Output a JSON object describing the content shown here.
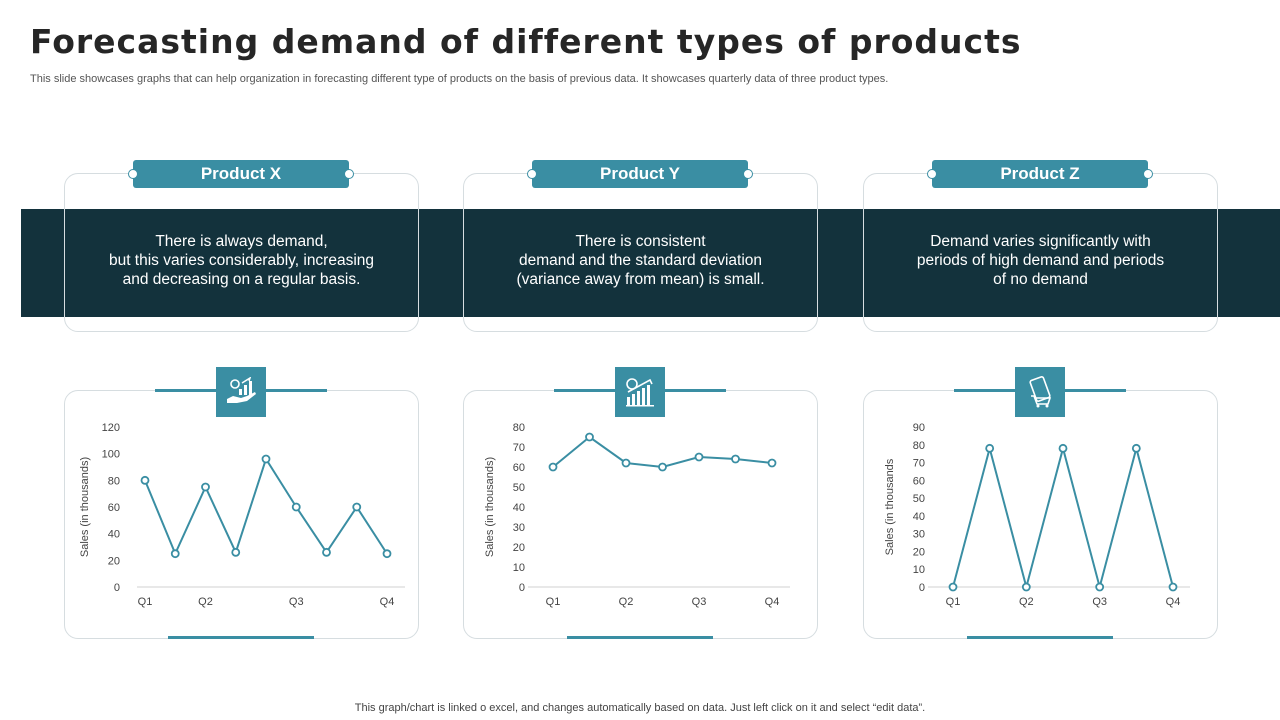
{
  "title": "Forecasting demand of different types of products",
  "subtitle": "This slide showcases graphs that can help organization in forecasting different type  of products on the basis of previous data. It showcases quarterly data of three product types.",
  "footer": "This graph/chart is linked o excel, and changes automatically based on data. Just left click on it and select “edit data”.",
  "colors": {
    "accent": "#3a8ea3",
    "band": "#13323c",
    "line": "#3a8ea3"
  },
  "products": [
    {
      "label": "Product X",
      "desc_lines": [
        "There is always demand,",
        "but this varies considerably, increasing",
        "and decreasing on a regular basis."
      ],
      "icon": "hand-money-growth-icon"
    },
    {
      "label": "Product Y",
      "desc_lines": [
        "There is consistent",
        "demand and the standard deviation",
        "(variance away from mean) is small."
      ],
      "icon": "growth-chart-icon"
    },
    {
      "label": "Product Z",
      "desc_lines": [
        "Demand varies significantly with",
        "periods of high demand and periods",
        "of no demand"
      ],
      "icon": "mobile-shopping-icon"
    }
  ],
  "chart_data": [
    {
      "type": "line",
      "categories": [
        "Q1",
        "",
        "Q2",
        "",
        "",
        "Q3",
        "",
        "",
        "Q4"
      ],
      "x_tick_labels": [
        "Q1",
        "Q2",
        "Q3",
        "Q4"
      ],
      "values": [
        80,
        25,
        75,
        26,
        96,
        60,
        26,
        60,
        25
      ],
      "ylabel": "Sales (in thousands)",
      "ylim": [
        0,
        120
      ],
      "yticks": [
        0,
        20,
        40,
        60,
        80,
        100,
        120
      ]
    },
    {
      "type": "line",
      "categories": [
        "Q1",
        "",
        "Q2",
        "",
        "Q3",
        "",
        "Q4"
      ],
      "x_tick_labels": [
        "Q1",
        "Q2",
        "Q3",
        "Q4"
      ],
      "values": [
        60,
        75,
        62,
        60,
        65,
        64,
        62
      ],
      "ylabel": "Sales (in thousands)",
      "ylim": [
        0,
        80
      ],
      "yticks": [
        0,
        10,
        20,
        30,
        40,
        50,
        60,
        70,
        80
      ]
    },
    {
      "type": "line",
      "categories": [
        "Q1",
        "",
        "Q2",
        "",
        "Q3",
        "",
        "Q4"
      ],
      "x_tick_labels": [
        "Q1",
        "Q2",
        "Q3",
        "Q4"
      ],
      "values": [
        0,
        78,
        0,
        78,
        0,
        78,
        0
      ],
      "ylabel": "Sales (in thousands",
      "ylim": [
        0,
        90
      ],
      "yticks": [
        0,
        10,
        20,
        30,
        40,
        50,
        60,
        70,
        80,
        90
      ]
    }
  ]
}
